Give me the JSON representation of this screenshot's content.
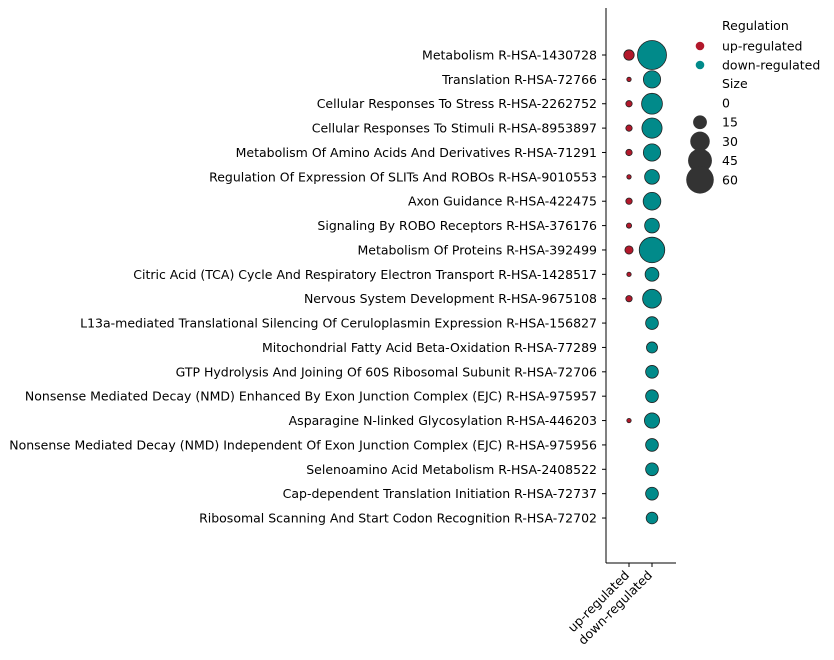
{
  "chart_data": {
    "type": "scatter",
    "title": "",
    "xlabel": "",
    "ylabel": "",
    "x_categories": [
      "up-regulated",
      "down-regulated"
    ],
    "y_categories": [
      "Metabolism R-HSA-1430728",
      "Translation R-HSA-72766",
      "Cellular Responses To Stress R-HSA-2262752",
      "Cellular Responses To Stimuli R-HSA-8953897",
      "Metabolism Of Amino Acids And Derivatives R-HSA-71291",
      "Regulation Of Expression Of SLITs And ROBOs R-HSA-9010553",
      "Axon Guidance R-HSA-422475",
      "Signaling By ROBO Receptors R-HSA-376176",
      "Metabolism Of Proteins R-HSA-392499",
      "Citric Acid (TCA) Cycle And Respiratory Electron Transport R-HSA-1428517",
      "Nervous System Development R-HSA-9675108",
      "L13a-mediated Translational Silencing Of Ceruloplasmin Expression R-HSA-156827",
      "Mitochondrial Fatty Acid Beta-Oxidation R-HSA-77289",
      "GTP Hydrolysis And Joining Of 60S Ribosomal Subunit R-HSA-72706",
      "Nonsense Mediated Decay (NMD) Enhanced By Exon Junction Complex (EJC) R-HSA-975957",
      "Asparagine N-linked Glycosylation R-HSA-446203",
      "Nonsense Mediated Decay (NMD) Independent Of Exon Junction Complex (EJC) R-HSA-975956",
      "Selenoamino Acid Metabolism R-HSA-2408522",
      "Cap-dependent Translation Initiation R-HSA-72737",
      "Ribosomal Scanning And Start Codon Recognition R-HSA-72702"
    ],
    "series": [
      {
        "name": "up-regulated",
        "color": "#b2182b",
        "sizes": [
          8,
          1,
          3,
          3,
          3,
          1,
          3,
          2,
          5,
          1,
          3,
          null,
          null,
          null,
          null,
          1,
          null,
          null,
          null,
          null
        ]
      },
      {
        "name": "down-regulated",
        "color": "#018a8a",
        "sizes": [
          62,
          22,
          32,
          30,
          22,
          16,
          23,
          16,
          48,
          14,
          26,
          12,
          9,
          12,
          12,
          17,
          12,
          12,
          12,
          10
        ]
      }
    ],
    "legend": {
      "placement": "right",
      "hue_title": "Regulation",
      "size_title": "Size",
      "size_entries": [
        "0",
        "15",
        "30",
        "45",
        "60"
      ],
      "size_values": [
        0,
        15,
        30,
        45,
        60
      ]
    },
    "size_range": [
      0,
      62
    ],
    "grid": false
  },
  "colors": {
    "marker_edge": "#222222",
    "size_legend_fill": "#333333"
  }
}
